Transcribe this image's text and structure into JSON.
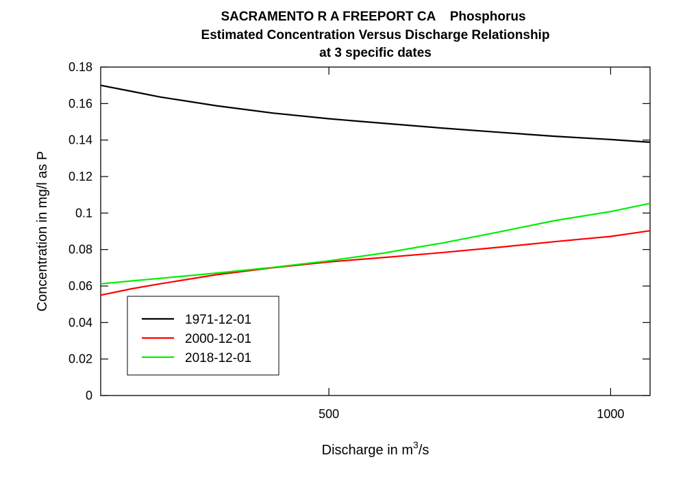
{
  "chart_data": {
    "type": "line",
    "title_lines": [
      "SACRAMENTO R A FREEPORT CA    Phosphorus",
      "Estimated Concentration Versus Discharge Relationship",
      "at 3 specific dates"
    ],
    "xlabel_prefix": "Discharge in m",
    "xlabel_sup": "3",
    "xlabel_suffix": "/s",
    "ylabel": "Concentration in mg/l as P",
    "xlim": [
      95,
      1070
    ],
    "ylim": [
      0,
      0.18
    ],
    "xticks": [
      500,
      1000
    ],
    "yticks": [
      0,
      0.02,
      0.04,
      0.06,
      0.08,
      0.1,
      0.12,
      0.14,
      0.16,
      0.18
    ],
    "ytick_labels": [
      "0",
      "0.02",
      "0.04",
      "0.06",
      "0.08",
      "0.1",
      "0.12",
      "0.14",
      "0.16",
      "0.18"
    ],
    "xtick_labels": [
      "500",
      "1000"
    ],
    "grid": false,
    "legend_position": "lower-left",
    "series": [
      {
        "name": "1971-12-01",
        "color": "#000000",
        "x": [
          95,
          150,
          200,
          300,
          400,
          500,
          600,
          700,
          800,
          900,
          1000,
          1070
        ],
        "y": [
          0.17,
          0.1667,
          0.1636,
          0.1588,
          0.1548,
          0.1517,
          0.1491,
          0.1466,
          0.1443,
          0.1421,
          0.1403,
          0.1388
        ]
      },
      {
        "name": "2000-12-01",
        "color": "#ff0000",
        "x": [
          95,
          150,
          200,
          300,
          400,
          500,
          600,
          700,
          800,
          900,
          1000,
          1070
        ],
        "y": [
          0.055,
          0.0585,
          0.0612,
          0.0662,
          0.07,
          0.0732,
          0.0757,
          0.0783,
          0.0812,
          0.0843,
          0.0872,
          0.0903
        ]
      },
      {
        "name": "2018-12-01",
        "color": "#00ee00",
        "x": [
          95,
          150,
          200,
          300,
          400,
          500,
          600,
          700,
          800,
          900,
          1000,
          1070
        ],
        "y": [
          0.0612,
          0.0628,
          0.0642,
          0.0671,
          0.0702,
          0.0738,
          0.0782,
          0.0835,
          0.0895,
          0.0958,
          0.1008,
          0.1053
        ]
      }
    ]
  }
}
